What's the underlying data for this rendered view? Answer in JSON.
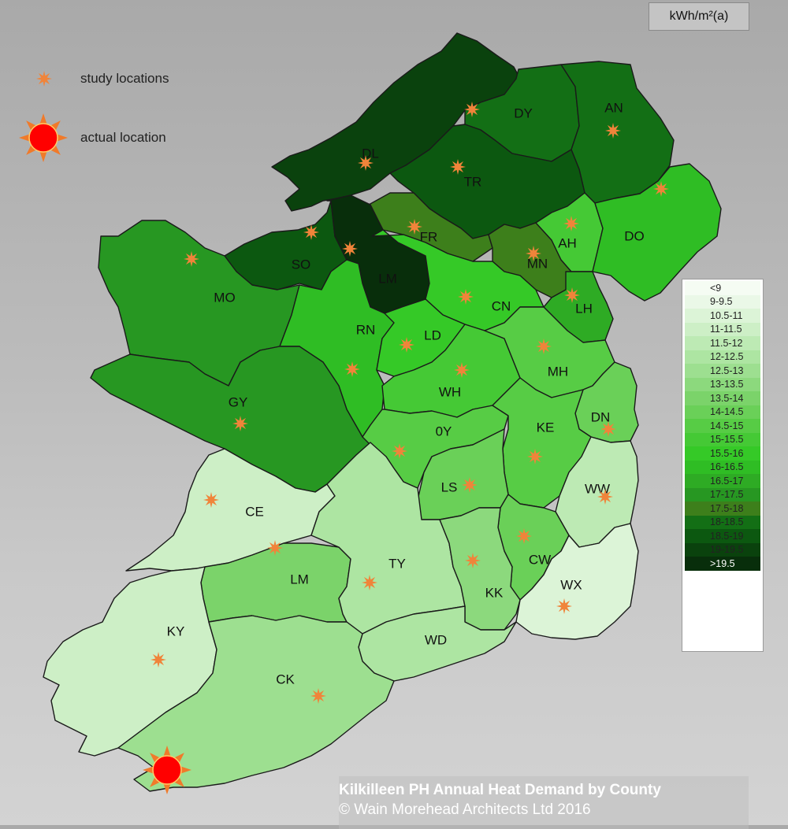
{
  "unit_label": "kWh/m²(a)",
  "key": {
    "study_label": "study  locations",
    "actual_label": "actual  location"
  },
  "legend": {
    "items": [
      {
        "label": "<9",
        "color": "#f5fcf3"
      },
      {
        "label": "9-9.5",
        "color": "#eaf8e7"
      },
      {
        "label": "10.5-11",
        "color": "#dcf4d7"
      },
      {
        "label": "11-11.5",
        "color": "#cdefc6"
      },
      {
        "label": "11.5-12",
        "color": "#bdeab4"
      },
      {
        "label": "12-12.5",
        "color": "#ade5a2"
      },
      {
        "label": "12.5-13",
        "color": "#9ddf90"
      },
      {
        "label": "13-13.5",
        "color": "#8cd97d"
      },
      {
        "label": "13.5-14",
        "color": "#7bd36a"
      },
      {
        "label": "14-14.5",
        "color": "#6ad058"
      },
      {
        "label": "14.5-15",
        "color": "#57cc45"
      },
      {
        "label": "15-15.5",
        "color": "#45c935"
      },
      {
        "label": "15.5-16",
        "color": "#35c927"
      },
      {
        "label": "16-16.5",
        "color": "#2fbd24"
      },
      {
        "label": "16.5-17",
        "color": "#2eab24"
      },
      {
        "label": "17-17.5",
        "color": "#279722"
      },
      {
        "label": "17.5-18",
        "color": "#3d7f1b"
      },
      {
        "label": "18-18.5",
        "color": "#136f15"
      },
      {
        "label": "18.5-19",
        "color": "#0c5810"
      },
      {
        "label": "19-19.5",
        "color": "#0a420d"
      },
      {
        "label": ">19.5",
        "color": "#082e0b"
      }
    ]
  },
  "counties": [
    {
      "code": "DL",
      "color": "#0a420d"
    },
    {
      "code": "DY",
      "color": "#136f15"
    },
    {
      "code": "AN",
      "color": "#136f15"
    },
    {
      "code": "TR",
      "color": "#0c5810"
    },
    {
      "code": "FR",
      "color": "#3d7f1b"
    },
    {
      "code": "MN",
      "color": "#3d7f1b"
    },
    {
      "code": "AH",
      "color": "#45c935"
    },
    {
      "code": "DO",
      "color": "#2fbd24"
    },
    {
      "code": "SO",
      "color": "#0c5810"
    },
    {
      "code": "LM",
      "color": "#082e0b"
    },
    {
      "code": "MO",
      "color": "#279722"
    },
    {
      "code": "CN",
      "color": "#35c927"
    },
    {
      "code": "LH",
      "color": "#2eab24"
    },
    {
      "code": "RN",
      "color": "#2fbd24"
    },
    {
      "code": "LD",
      "color": "#35c927"
    },
    {
      "code": "WH",
      "color": "#45c935"
    },
    {
      "code": "MH",
      "color": "#57cc45"
    },
    {
      "code": "GY",
      "color": "#279722"
    },
    {
      "code": "DN",
      "color": "#6ad058"
    },
    {
      "code": "0Y",
      "color": "#57cc45"
    },
    {
      "code": "KE",
      "color": "#57cc45"
    },
    {
      "code": "LS",
      "color": "#6ad058"
    },
    {
      "code": "WW",
      "color": "#bdeab4"
    },
    {
      "code": "CE",
      "color": "#cdefc6"
    },
    {
      "code": "LM",
      "color": "#7bd36a"
    },
    {
      "code": "TY",
      "color": "#ade5a2"
    },
    {
      "code": "CW",
      "color": "#6ad058"
    },
    {
      "code": "KK",
      "color": "#8cd97d"
    },
    {
      "code": "WX",
      "color": "#dcf4d7"
    },
    {
      "code": "KY",
      "color": "#cdefc6"
    },
    {
      "code": "WD",
      "color": "#ade5a2"
    },
    {
      "code": "CK",
      "color": "#9ddf90"
    }
  ],
  "colors": {
    "study_marker": "#f0843a",
    "actual_marker": "#ff0000",
    "actual_ray": "#f07a2a"
  },
  "credit": {
    "title": "Kilkilleen PH Annual Heat Demand by County",
    "copyright": "© Wain Morehead Architects Ltd 2016"
  }
}
